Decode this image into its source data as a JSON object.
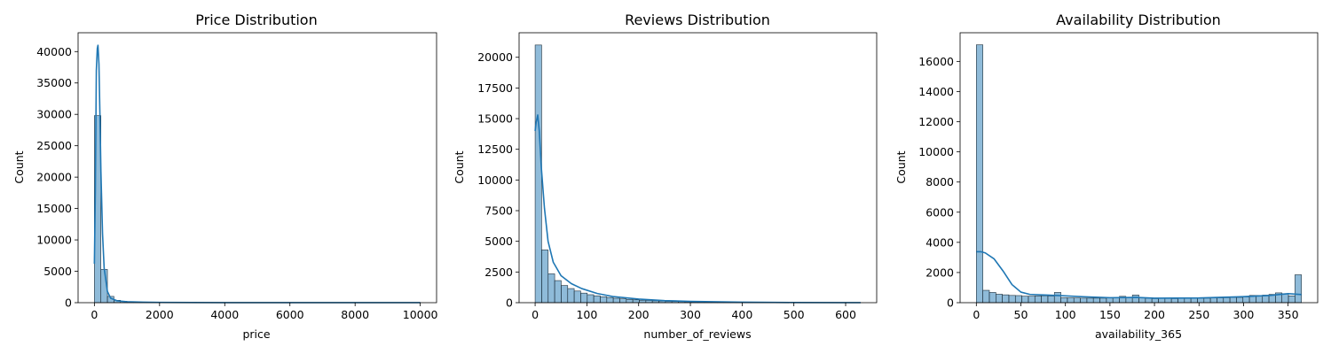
{
  "colors": {
    "bar_fill": "#1f77b4",
    "kde_line": "#1f77b4"
  },
  "chart_data": [
    {
      "type": "bar",
      "title": "Price Distribution",
      "xlabel": "price",
      "ylabel": "Count",
      "xlim": [
        -500,
        10500
      ],
      "ylim": [
        0,
        43000
      ],
      "xticks": [
        0,
        2000,
        4000,
        6000,
        8000,
        10000
      ],
      "yticks": [
        0,
        5000,
        10000,
        15000,
        20000,
        25000,
        30000,
        35000,
        40000
      ],
      "bin_start": 0,
      "bin_width": 200,
      "values": [
        29800,
        5300,
        1000,
        380,
        220,
        130,
        90,
        60,
        45,
        35,
        25,
        20,
        15,
        12,
        10,
        9,
        8,
        7,
        6,
        5,
        5,
        4,
        4,
        3,
        3,
        3,
        3,
        2,
        2,
        2,
        2,
        2,
        2,
        2,
        2,
        2,
        2,
        2,
        2,
        1,
        1,
        1,
        1,
        1,
        1,
        1,
        1,
        1,
        1,
        15
      ],
      "kde": {
        "x": [
          0,
          30,
          60,
          90,
          110,
          140,
          170,
          200,
          250,
          300,
          400,
          500,
          700,
          1000,
          1500,
          2000,
          3000,
          5000,
          8000,
          10000
        ],
        "y": [
          6200,
          18000,
          37000,
          40500,
          41000,
          38000,
          30000,
          21000,
          11000,
          5500,
          1800,
          700,
          300,
          150,
          80,
          40,
          20,
          10,
          5,
          3
        ]
      }
    },
    {
      "type": "bar",
      "title": "Reviews Distribution",
      "xlabel": "number_of_reviews",
      "ylabel": "Count",
      "xlim": [
        -31,
        660
      ],
      "ylim": [
        0,
        22000
      ],
      "xticks": [
        0,
        100,
        200,
        300,
        400,
        500,
        600
      ],
      "yticks": [
        0,
        2500,
        5000,
        7500,
        10000,
        12500,
        15000,
        17500,
        20000
      ],
      "bin_start": 0,
      "bin_width": 12.58,
      "values": [
        21000,
        4300,
        2350,
        1800,
        1400,
        1150,
        950,
        780,
        650,
        560,
        480,
        420,
        360,
        310,
        270,
        230,
        200,
        180,
        150,
        130,
        110,
        100,
        85,
        75,
        65,
        55,
        50,
        45,
        40,
        35,
        30,
        27,
        25,
        22,
        20,
        18,
        16,
        14,
        12,
        11,
        10,
        9,
        8,
        7,
        6,
        5,
        5,
        4,
        4,
        3
      ],
      "kde": {
        "x": [
          0,
          2,
          5,
          8,
          12,
          18,
          25,
          35,
          50,
          70,
          90,
          120,
          150,
          200,
          250,
          300,
          400,
          500,
          600,
          629
        ],
        "y": [
          14000,
          14700,
          15300,
          14000,
          11000,
          7700,
          5000,
          3300,
          2200,
          1550,
          1150,
          750,
          500,
          290,
          170,
          100,
          40,
          15,
          5,
          3
        ]
      }
    },
    {
      "type": "bar",
      "title": "Availability Distribution",
      "xlabel": "availability_365",
      "ylabel": "Count",
      "xlim": [
        -18.25,
        383.25
      ],
      "ylim": [
        0,
        17900
      ],
      "xticks": [
        0,
        50,
        100,
        150,
        200,
        250,
        300,
        350
      ],
      "yticks": [
        0,
        2000,
        4000,
        6000,
        8000,
        10000,
        12000,
        14000,
        16000
      ],
      "bin_start": 0,
      "bin_width": 7.3,
      "values": [
        17100,
        820,
        680,
        560,
        520,
        480,
        470,
        430,
        430,
        450,
        460,
        440,
        680,
        330,
        320,
        310,
        300,
        300,
        300,
        300,
        310,
        330,
        420,
        350,
        510,
        330,
        300,
        270,
        300,
        290,
        270,
        290,
        300,
        300,
        300,
        300,
        310,
        320,
        330,
        350,
        350,
        380,
        480,
        480,
        500,
        550,
        650,
        600,
        450,
        1850
      ],
      "kde": {
        "x": [
          0,
          5,
          10,
          20,
          30,
          40,
          50,
          60,
          80,
          100,
          120,
          150,
          180,
          200,
          250,
          300,
          330,
          350,
          365
        ],
        "y": [
          3380,
          3380,
          3300,
          2900,
          2100,
          1200,
          700,
          550,
          500,
          450,
          390,
          330,
          350,
          300,
          310,
          400,
          480,
          600,
          540
        ]
      }
    }
  ]
}
